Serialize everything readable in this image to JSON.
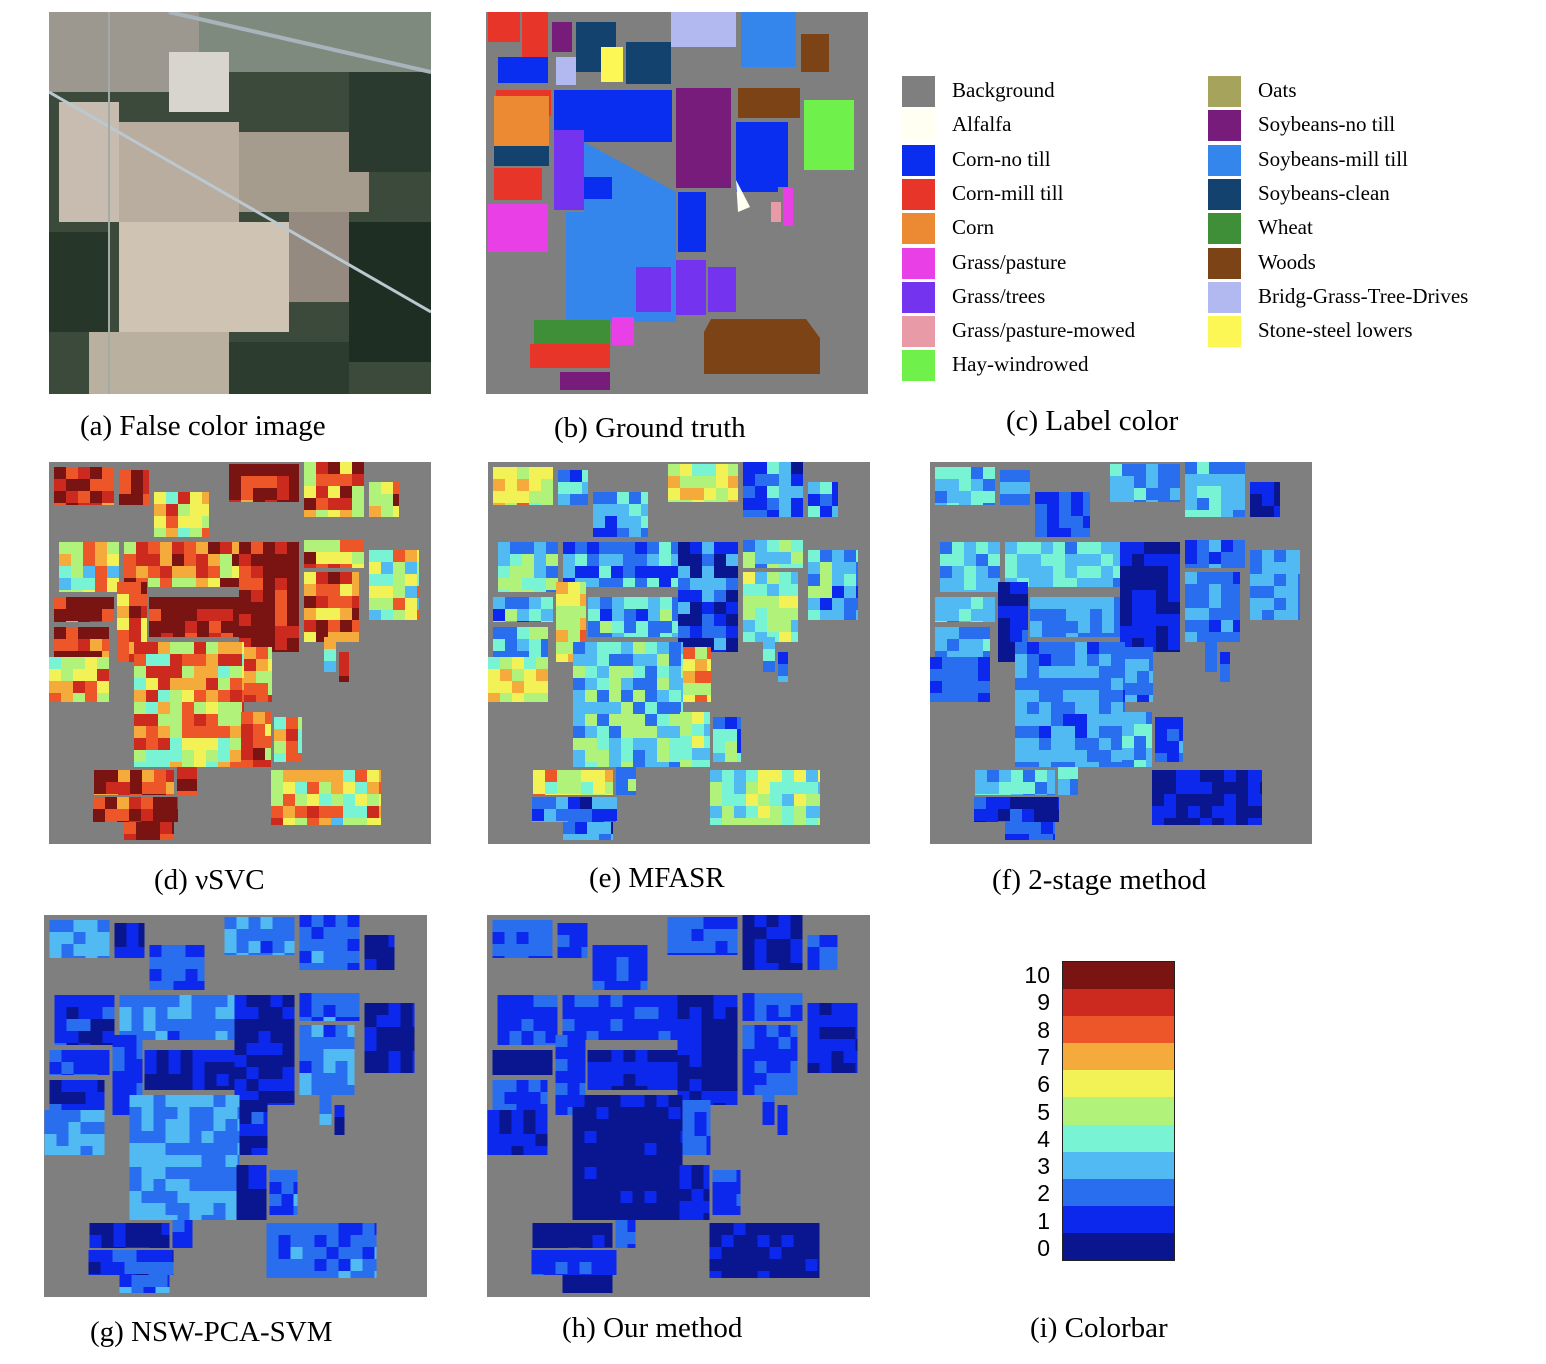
{
  "panels": {
    "a": {
      "caption": "(a) False color image"
    },
    "b": {
      "caption": "(b) Ground truth"
    },
    "c": {
      "caption": "(c) Label color"
    },
    "d": {
      "caption": "(d) νSVC"
    },
    "e": {
      "caption": "(e) MFASR"
    },
    "f": {
      "caption": "(f) 2-stage method"
    },
    "g": {
      "caption": "(g) NSW-PCA-SVM"
    },
    "h": {
      "caption": "(h) Our method"
    },
    "i": {
      "caption": "(i) Colorbar"
    }
  },
  "legend": [
    {
      "label": "Background",
      "color": "#7f7f7f"
    },
    {
      "label": "Alfalfa",
      "color": "#fffff2"
    },
    {
      "label": "Corn-no till",
      "color": "#0a2ef0"
    },
    {
      "label": "Corn-mill till",
      "color": "#e8352a"
    },
    {
      "label": "Corn",
      "color": "#ec8a33"
    },
    {
      "label": "Grass/pasture",
      "color": "#e840e6"
    },
    {
      "label": "Grass/trees",
      "color": "#7433ee"
    },
    {
      "label": "Grass/pasture-mowed",
      "color": "#e89aa6"
    },
    {
      "label": "Hay-windrowed",
      "color": "#6ff04a"
    },
    {
      "label": "Oats",
      "color": "#a6a35c"
    },
    {
      "label": "Soybeans-no till",
      "color": "#781c7c"
    },
    {
      "label": "Soybeans-mill till",
      "color": "#3486ec"
    },
    {
      "label": "Soybeans-clean",
      "color": "#14426e"
    },
    {
      "label": "Wheat",
      "color": "#3e8f38"
    },
    {
      "label": "Woods",
      "color": "#7b4316"
    },
    {
      "label": "Bridg-Grass-Tree-Drives",
      "color": "#b2b8f0"
    },
    {
      "label": "Stone-steel lowers",
      "color": "#fcf754"
    }
  ],
  "colorbar": {
    "ticks": [
      "10",
      "9",
      "8",
      "7",
      "6",
      "5",
      "4",
      "3",
      "2",
      "1",
      "0"
    ],
    "colors": [
      "#7a1412",
      "#cc2a1e",
      "#ec5628",
      "#f4ab3c",
      "#f2f256",
      "#b0f27a",
      "#78f4d4",
      "#52baf2",
      "#2a6ef0",
      "#0c28ec",
      "#0a1690"
    ]
  },
  "chart_data": [
    {
      "type": "heatmap",
      "title": "(d) νSVC",
      "colormap_range": [
        0,
        10
      ]
    },
    {
      "type": "heatmap",
      "title": "(e) MFASR",
      "colormap_range": [
        0,
        10
      ]
    },
    {
      "type": "heatmap",
      "title": "(f) 2-stage method",
      "colormap_range": [
        0,
        10
      ]
    },
    {
      "type": "heatmap",
      "title": "(g) NSW-PCA-SVM",
      "colormap_range": [
        0,
        10
      ]
    },
    {
      "type": "heatmap",
      "title": "(h) Our method",
      "colormap_range": [
        0,
        10
      ]
    }
  ]
}
